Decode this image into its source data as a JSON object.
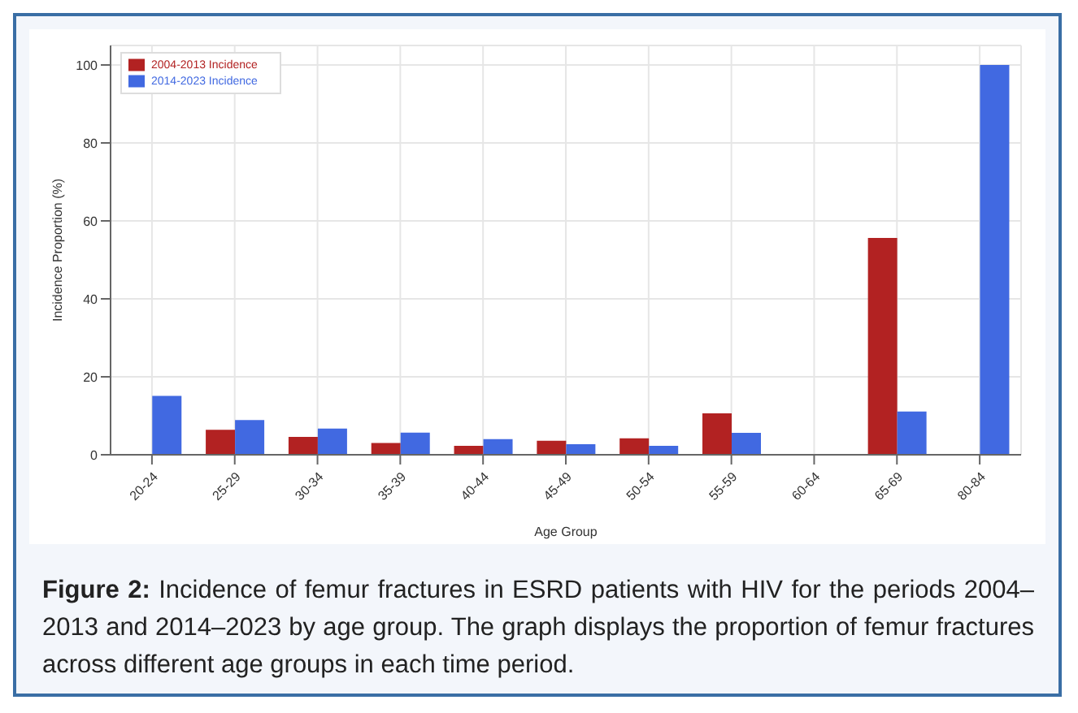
{
  "chart_data": {
    "type": "bar",
    "xlabel": "Age Group",
    "ylabel": "Incidence Proportion (%)",
    "categories": [
      "20-24",
      "25-29",
      "30-34",
      "35-39",
      "40-44",
      "45-49",
      "50-54",
      "55-59",
      "60-64",
      "65-69",
      "80-84"
    ],
    "series": [
      {
        "name": "2004-2013 Incidence",
        "color": "#b22222",
        "values": [
          0,
          6.4,
          4.6,
          3.0,
          2.3,
          3.6,
          4.2,
          10.6,
          0,
          55.6,
          0
        ]
      },
      {
        "name": "2014-2023 Incidence",
        "color": "#4169e1",
        "values": [
          15.1,
          8.9,
          6.7,
          5.7,
          4.0,
          2.7,
          2.3,
          5.6,
          0,
          11.1,
          100
        ]
      }
    ],
    "ylim": [
      0,
      105
    ],
    "yticks": [
      0,
      20,
      40,
      60,
      80,
      100
    ],
    "grid": true,
    "legend": "top left",
    "annotations": [
      "Figure 2:",
      "Incidence of femur fractures in ESRD patients with HIV for the periods 2004–2013 and 2014–2023 by age group. The graph displays the proportion of femur fractures across different age groups in each time period."
    ]
  }
}
